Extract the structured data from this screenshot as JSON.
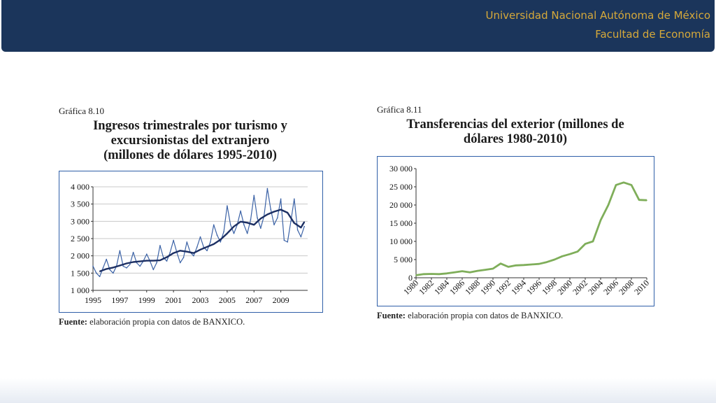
{
  "header": {
    "line1": "Universidad Nacional Autónoma de México",
    "line2": "Facultad de Economía"
  },
  "colors": {
    "header_bg": "#1b355b",
    "header_text": "#d6a93a",
    "frame": "#2f5fa8",
    "series_quarterly": "#3b62a6",
    "series_trend": "#1c2f63",
    "series_transfers": "#7fae5a"
  },
  "chart_left": {
    "label": "Gráfica 8.10",
    "title_line1": "Ingresos trimestrales por turismo y",
    "title_line2": "excursionistas del extranjero",
    "title_line3": "(millones de dólares 1995-2010)",
    "source_bold": "Fuente:",
    "source_rest": " elaboración propia con datos de BANXICO."
  },
  "chart_right": {
    "label": "Gráfica 8.11",
    "title_line1": "Transferencias del exterior (millones de",
    "title_line2": "dólares 1980-2010)",
    "source_bold": "Fuente:",
    "source_rest": " elaboración propia con datos de BANXICO."
  },
  "chart_data": [
    {
      "type": "line",
      "title": "Ingresos trimestrales por turismo y excursionistas del extranjero (millones de dólares 1995-2010)",
      "xlabel": "",
      "ylabel": "",
      "xlim": [
        1995,
        2011
      ],
      "ylim": [
        1000,
        4000
      ],
      "yticks": [
        1000,
        1500,
        2000,
        2500,
        3000,
        3500,
        4000
      ],
      "ytick_labels": [
        "1 000",
        "1 500",
        "2 000",
        "2 500",
        "3 000",
        "3 500",
        "4 000"
      ],
      "xticks": [
        1995,
        1997,
        1999,
        2001,
        2003,
        2005,
        2007,
        2009
      ],
      "xtick_labels": [
        "1995",
        "1997",
        "1999",
        "2001",
        "2003",
        "2005",
        "2007",
        "2009"
      ],
      "grid": "horizontal",
      "series": [
        {
          "x": [
            1995.0,
            1995.25,
            1995.5,
            1995.75,
            1996.0,
            1996.25,
            1996.5,
            1996.75,
            1997.0,
            1997.25,
            1997.5,
            1997.75,
            1998.0,
            1998.25,
            1998.5,
            1998.75,
            1999.0,
            1999.25,
            1999.5,
            1999.75,
            2000.0,
            2000.25,
            2000.5,
            2000.75,
            2001.0,
            2001.25,
            2001.5,
            2001.75,
            2002.0,
            2002.25,
            2002.5,
            2002.75,
            2003.0,
            2003.25,
            2003.5,
            2003.75,
            2004.0,
            2004.25,
            2004.5,
            2004.75,
            2005.0,
            2005.25,
            2005.5,
            2005.75,
            2006.0,
            2006.25,
            2006.5,
            2006.75,
            2007.0,
            2007.25,
            2007.5,
            2007.75,
            2008.0,
            2008.25,
            2008.5,
            2008.75,
            2009.0,
            2009.25,
            2009.5,
            2009.75,
            2010.0,
            2010.25,
            2010.5,
            2010.75
          ],
          "y": [
            1700,
            1500,
            1400,
            1650,
            1900,
            1600,
            1500,
            1700,
            2150,
            1700,
            1650,
            1750,
            2100,
            1800,
            1700,
            1850,
            2050,
            1850,
            1600,
            1800,
            2300,
            1950,
            1850,
            2100,
            2450,
            2100,
            1800,
            1950,
            2400,
            2100,
            2000,
            2250,
            2550,
            2250,
            2150,
            2400,
            2900,
            2600,
            2400,
            2700,
            3450,
            2900,
            2650,
            2900,
            3300,
            2900,
            2650,
            3050,
            3750,
            3100,
            2800,
            3150,
            3950,
            3350,
            2900,
            3100,
            3650,
            2450,
            2400,
            3000,
            3650,
            2750,
            2550,
            2850
          ]
        },
        {
          "x": [
            1995.5,
            1996.0,
            1996.5,
            1997.0,
            1997.5,
            1998.0,
            1998.5,
            1999.0,
            1999.5,
            2000.0,
            2000.5,
            2001.0,
            2001.5,
            2002.0,
            2002.5,
            2003.0,
            2003.5,
            2004.0,
            2004.5,
            2005.0,
            2005.5,
            2006.0,
            2006.5,
            2007.0,
            2007.5,
            2008.0,
            2008.5,
            2009.0,
            2009.5,
            2010.0,
            2010.5,
            2010.75
          ],
          "y": [
            1550,
            1620,
            1660,
            1720,
            1780,
            1820,
            1840,
            1860,
            1860,
            1870,
            1960,
            2080,
            2150,
            2120,
            2080,
            2180,
            2260,
            2340,
            2470,
            2650,
            2850,
            2990,
            2960,
            2900,
            3080,
            3200,
            3280,
            3340,
            3250,
            2950,
            2820,
            2980
          ]
        }
      ]
    },
    {
      "type": "line",
      "title": "Transferencias del exterior (millones de dólares 1980-2010)",
      "xlabel": "",
      "ylabel": "",
      "xlim": [
        1980,
        2010
      ],
      "ylim": [
        0,
        30000
      ],
      "yticks": [
        0,
        5000,
        10000,
        15000,
        20000,
        25000,
        30000
      ],
      "ytick_labels": [
        "0",
        "5 000",
        "10 000",
        "15 000",
        "20 000",
        "25 000",
        "30 000"
      ],
      "xticks": [
        1980,
        1982,
        1984,
        1986,
        1988,
        1990,
        1992,
        1994,
        1996,
        1998,
        2000,
        2002,
        2004,
        2006,
        2008,
        2010
      ],
      "xtick_labels": [
        "1980",
        "1982",
        "1984",
        "1986",
        "1988",
        "1990",
        "1992",
        "1994",
        "1996",
        "1998",
        "2000",
        "2002",
        "2004",
        "2006",
        "2008",
        "2010"
      ],
      "grid": "none",
      "series": [
        {
          "x": [
            1980,
            1981,
            1982,
            1983,
            1984,
            1985,
            1986,
            1987,
            1988,
            1989,
            1990,
            1991,
            1992,
            1993,
            1994,
            1995,
            1996,
            1997,
            1998,
            1999,
            2000,
            2001,
            2002,
            2003,
            2004,
            2005,
            2006,
            2007,
            2008,
            2009,
            2010
          ],
          "y": [
            700,
            1000,
            1050,
            1000,
            1200,
            1500,
            1800,
            1500,
            1900,
            2200,
            2500,
            3900,
            3000,
            3400,
            3500,
            3650,
            3800,
            4300,
            5000,
            5900,
            6500,
            7200,
            9300,
            10000,
            15800,
            20000,
            25500,
            26200,
            25500,
            21400,
            21300
          ]
        }
      ]
    }
  ]
}
